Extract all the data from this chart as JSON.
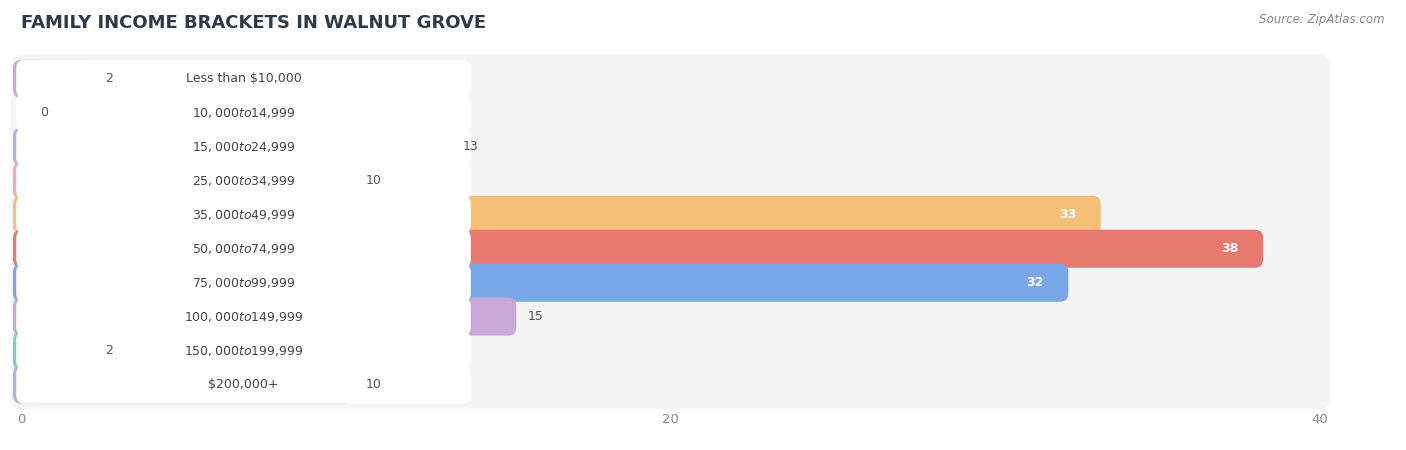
{
  "title": "FAMILY INCOME BRACKETS IN WALNUT GROVE",
  "source": "Source: ZipAtlas.com",
  "categories": [
    "Less than $10,000",
    "$10,000 to $14,999",
    "$15,000 to $24,999",
    "$25,000 to $34,999",
    "$35,000 to $49,999",
    "$50,000 to $74,999",
    "$75,000 to $99,999",
    "$100,000 to $149,999",
    "$150,000 to $199,999",
    "$200,000+"
  ],
  "values": [
    2,
    0,
    13,
    10,
    33,
    38,
    32,
    15,
    2,
    10
  ],
  "bar_colors": [
    "#c9a8d8",
    "#7ecfc5",
    "#a8b8e8",
    "#f4a8bc",
    "#f5bf78",
    "#e8796e",
    "#78a8e8",
    "#c9a8d8",
    "#7ecfc5",
    "#a8b8e8"
  ],
  "xlim": [
    0,
    42
  ],
  "xticks": [
    0,
    20,
    40
  ],
  "background_color": "#ffffff",
  "row_bg_color": "#f5f5f5",
  "bar_bg_color": "#ececec",
  "title_fontsize": 13,
  "label_fontsize": 9,
  "value_fontsize": 9,
  "value_threshold": 28
}
